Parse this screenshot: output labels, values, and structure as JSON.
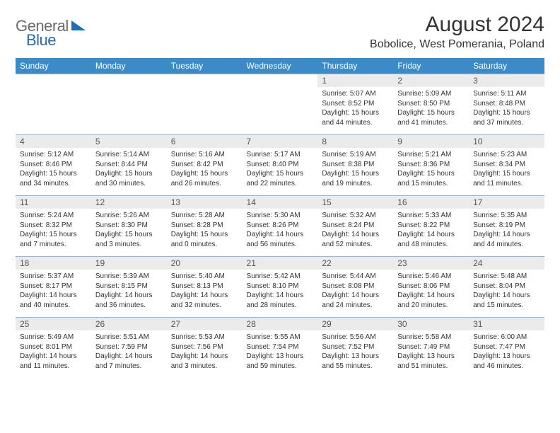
{
  "logo": {
    "text1": "General",
    "text2": "Blue",
    "shape_color": "#1f6db5"
  },
  "title": "August 2024",
  "location": "Bobolice, West Pomerania, Poland",
  "colors": {
    "header_bg": "#3b8bc9",
    "header_text": "#ffffff",
    "daynum_bg": "#ebebeb",
    "cell_border": "#98b7d2",
    "body_text": "#333333"
  },
  "day_headers": [
    "Sunday",
    "Monday",
    "Tuesday",
    "Wednesday",
    "Thursday",
    "Friday",
    "Saturday"
  ],
  "weeks": [
    [
      null,
      null,
      null,
      null,
      {
        "n": "1",
        "sr": "Sunrise: 5:07 AM",
        "ss": "Sunset: 8:52 PM",
        "dl": "Daylight: 15 hours and 44 minutes."
      },
      {
        "n": "2",
        "sr": "Sunrise: 5:09 AM",
        "ss": "Sunset: 8:50 PM",
        "dl": "Daylight: 15 hours and 41 minutes."
      },
      {
        "n": "3",
        "sr": "Sunrise: 5:11 AM",
        "ss": "Sunset: 8:48 PM",
        "dl": "Daylight: 15 hours and 37 minutes."
      }
    ],
    [
      {
        "n": "4",
        "sr": "Sunrise: 5:12 AM",
        "ss": "Sunset: 8:46 PM",
        "dl": "Daylight: 15 hours and 34 minutes."
      },
      {
        "n": "5",
        "sr": "Sunrise: 5:14 AM",
        "ss": "Sunset: 8:44 PM",
        "dl": "Daylight: 15 hours and 30 minutes."
      },
      {
        "n": "6",
        "sr": "Sunrise: 5:16 AM",
        "ss": "Sunset: 8:42 PM",
        "dl": "Daylight: 15 hours and 26 minutes."
      },
      {
        "n": "7",
        "sr": "Sunrise: 5:17 AM",
        "ss": "Sunset: 8:40 PM",
        "dl": "Daylight: 15 hours and 22 minutes."
      },
      {
        "n": "8",
        "sr": "Sunrise: 5:19 AM",
        "ss": "Sunset: 8:38 PM",
        "dl": "Daylight: 15 hours and 19 minutes."
      },
      {
        "n": "9",
        "sr": "Sunrise: 5:21 AM",
        "ss": "Sunset: 8:36 PM",
        "dl": "Daylight: 15 hours and 15 minutes."
      },
      {
        "n": "10",
        "sr": "Sunrise: 5:23 AM",
        "ss": "Sunset: 8:34 PM",
        "dl": "Daylight: 15 hours and 11 minutes."
      }
    ],
    [
      {
        "n": "11",
        "sr": "Sunrise: 5:24 AM",
        "ss": "Sunset: 8:32 PM",
        "dl": "Daylight: 15 hours and 7 minutes."
      },
      {
        "n": "12",
        "sr": "Sunrise: 5:26 AM",
        "ss": "Sunset: 8:30 PM",
        "dl": "Daylight: 15 hours and 3 minutes."
      },
      {
        "n": "13",
        "sr": "Sunrise: 5:28 AM",
        "ss": "Sunset: 8:28 PM",
        "dl": "Daylight: 15 hours and 0 minutes."
      },
      {
        "n": "14",
        "sr": "Sunrise: 5:30 AM",
        "ss": "Sunset: 8:26 PM",
        "dl": "Daylight: 14 hours and 56 minutes."
      },
      {
        "n": "15",
        "sr": "Sunrise: 5:32 AM",
        "ss": "Sunset: 8:24 PM",
        "dl": "Daylight: 14 hours and 52 minutes."
      },
      {
        "n": "16",
        "sr": "Sunrise: 5:33 AM",
        "ss": "Sunset: 8:22 PM",
        "dl": "Daylight: 14 hours and 48 minutes."
      },
      {
        "n": "17",
        "sr": "Sunrise: 5:35 AM",
        "ss": "Sunset: 8:19 PM",
        "dl": "Daylight: 14 hours and 44 minutes."
      }
    ],
    [
      {
        "n": "18",
        "sr": "Sunrise: 5:37 AM",
        "ss": "Sunset: 8:17 PM",
        "dl": "Daylight: 14 hours and 40 minutes."
      },
      {
        "n": "19",
        "sr": "Sunrise: 5:39 AM",
        "ss": "Sunset: 8:15 PM",
        "dl": "Daylight: 14 hours and 36 minutes."
      },
      {
        "n": "20",
        "sr": "Sunrise: 5:40 AM",
        "ss": "Sunset: 8:13 PM",
        "dl": "Daylight: 14 hours and 32 minutes."
      },
      {
        "n": "21",
        "sr": "Sunrise: 5:42 AM",
        "ss": "Sunset: 8:10 PM",
        "dl": "Daylight: 14 hours and 28 minutes."
      },
      {
        "n": "22",
        "sr": "Sunrise: 5:44 AM",
        "ss": "Sunset: 8:08 PM",
        "dl": "Daylight: 14 hours and 24 minutes."
      },
      {
        "n": "23",
        "sr": "Sunrise: 5:46 AM",
        "ss": "Sunset: 8:06 PM",
        "dl": "Daylight: 14 hours and 20 minutes."
      },
      {
        "n": "24",
        "sr": "Sunrise: 5:48 AM",
        "ss": "Sunset: 8:04 PM",
        "dl": "Daylight: 14 hours and 15 minutes."
      }
    ],
    [
      {
        "n": "25",
        "sr": "Sunrise: 5:49 AM",
        "ss": "Sunset: 8:01 PM",
        "dl": "Daylight: 14 hours and 11 minutes."
      },
      {
        "n": "26",
        "sr": "Sunrise: 5:51 AM",
        "ss": "Sunset: 7:59 PM",
        "dl": "Daylight: 14 hours and 7 minutes."
      },
      {
        "n": "27",
        "sr": "Sunrise: 5:53 AM",
        "ss": "Sunset: 7:56 PM",
        "dl": "Daylight: 14 hours and 3 minutes."
      },
      {
        "n": "28",
        "sr": "Sunrise: 5:55 AM",
        "ss": "Sunset: 7:54 PM",
        "dl": "Daylight: 13 hours and 59 minutes."
      },
      {
        "n": "29",
        "sr": "Sunrise: 5:56 AM",
        "ss": "Sunset: 7:52 PM",
        "dl": "Daylight: 13 hours and 55 minutes."
      },
      {
        "n": "30",
        "sr": "Sunrise: 5:58 AM",
        "ss": "Sunset: 7:49 PM",
        "dl": "Daylight: 13 hours and 51 minutes."
      },
      {
        "n": "31",
        "sr": "Sunrise: 6:00 AM",
        "ss": "Sunset: 7:47 PM",
        "dl": "Daylight: 13 hours and 46 minutes."
      }
    ]
  ]
}
